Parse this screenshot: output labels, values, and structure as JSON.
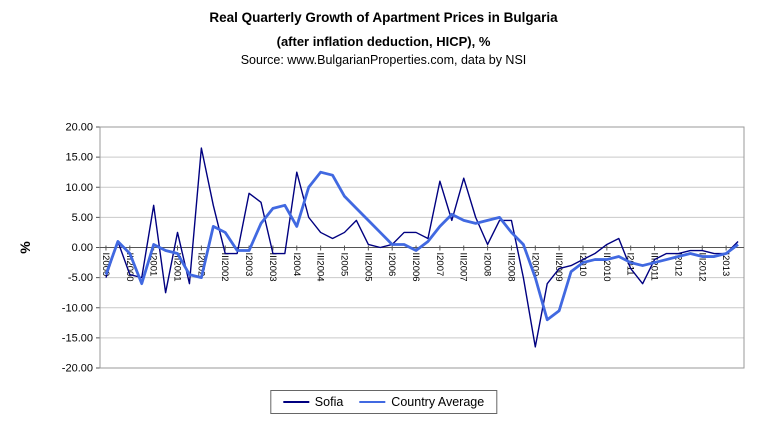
{
  "header": {
    "title_line1": "Real Quarterly Growth of Apartment Prices in Bulgaria",
    "title_line2": "(after inflation deduction, HICP), %",
    "source": "Source: www.BulgarianProperties.com, data by NSI"
  },
  "chart_data": {
    "type": "line",
    "title": "Real Quarterly Growth of Apartment Prices in Bulgaria (after inflation deduction, HICP), %",
    "subtitle": "Source: www.BulgarianProperties.com, data by NSI",
    "xlabel": "",
    "ylabel": "%",
    "ylim": [
      -20,
      20
    ],
    "ytick_step": 5,
    "ytick_decimals": 2,
    "grid": true,
    "legend_position": "bottom",
    "x_label_every": 2,
    "x": [
      "I2000",
      "II2000",
      "III2000",
      "IV2000",
      "I2001",
      "II2001",
      "III2001",
      "IV2001",
      "I2002",
      "II2002",
      "III2002",
      "IV2002",
      "I2003",
      "II2003",
      "III2003",
      "IV2003",
      "I2004",
      "II2004",
      "III2004",
      "IV2004",
      "I2005",
      "II2005",
      "III2005",
      "IV2005",
      "I2006",
      "II2006",
      "III2006",
      "IV2006",
      "I2007",
      "II2007",
      "III2007",
      "IV2007",
      "I2008",
      "II2008",
      "III2008",
      "IV2008",
      "I2009",
      "II2009",
      "III2009",
      "IV2009",
      "I2010",
      "II2010",
      "III2010",
      "IV2010",
      "I2011",
      "II2011",
      "III2011",
      "IV2011",
      "I2012",
      "II2012",
      "III2012",
      "IV2012",
      "I2013",
      "II2013"
    ],
    "series": [
      {
        "name": "Sofia",
        "color": "#000080",
        "width": 1.4,
        "values": [
          -5.0,
          1.0,
          -4.5,
          -5.0,
          7.0,
          -7.5,
          2.5,
          -6.0,
          16.5,
          7.0,
          -1.0,
          -1.0,
          9.0,
          7.5,
          -1.0,
          -1.0,
          12.5,
          5.0,
          2.5,
          1.5,
          2.5,
          4.5,
          0.5,
          0.0,
          0.5,
          2.5,
          2.5,
          1.5,
          11.0,
          4.5,
          11.5,
          5.0,
          0.5,
          4.5,
          4.5,
          -5.0,
          -16.5,
          -6.0,
          -3.5,
          -3.0,
          -2.0,
          -1.0,
          0.5,
          1.5,
          -3.5,
          -6.0,
          -2.0,
          -1.0,
          -1.0,
          -0.5,
          -0.5,
          -1.0,
          -1.0,
          1.0
        ]
      },
      {
        "name": "Country Average",
        "color": "#4169E1",
        "width": 2.8,
        "values": [
          -4.5,
          1.0,
          -1.0,
          -6.0,
          0.5,
          -0.5,
          -1.0,
          -4.5,
          -5.0,
          3.5,
          2.5,
          -0.5,
          -0.5,
          4.0,
          6.5,
          7.0,
          3.5,
          10.0,
          12.5,
          12.0,
          8.5,
          6.5,
          4.5,
          2.5,
          0.5,
          0.5,
          -0.5,
          1.0,
          3.5,
          5.5,
          4.5,
          4.0,
          4.5,
          5.0,
          2.5,
          0.5,
          -5.0,
          -12.0,
          -10.5,
          -4.0,
          -2.5,
          -2.0,
          -2.0,
          -1.5,
          -2.5,
          -3.0,
          -2.5,
          -2.0,
          -1.5,
          -1.0,
          -1.5,
          -1.5,
          -1.0,
          0.5
        ]
      }
    ]
  }
}
